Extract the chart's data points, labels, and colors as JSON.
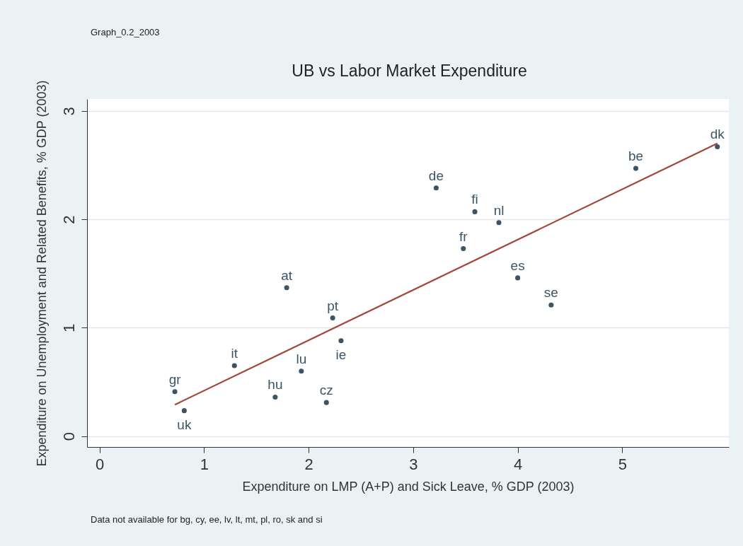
{
  "chart_data": {
    "type": "scatter",
    "title": "UB vs Labor Market Expenditure",
    "subtitle": "Graph_0.2_2003",
    "xlabel": "Expenditure on LMP (A+P) and Sick Leave, % GDP (2003)",
    "ylabel": "Expenditure on Unemployment and Related Benefits, % GDP (2003)",
    "xlim": [
      -0.12,
      6.02
    ],
    "ylim": [
      -0.1,
      3.11
    ],
    "xticks": [
      0,
      1,
      2,
      3,
      4,
      5
    ],
    "yticks": [
      0,
      1,
      2,
      3
    ],
    "grid": "y",
    "series": [
      {
        "marker": "circle",
        "color": "#3b5566",
        "x": [
          0.72,
          0.81,
          1.29,
          1.68,
          1.93,
          1.79,
          2.17,
          2.23,
          2.31,
          3.22,
          3.48,
          3.59,
          3.82,
          4.0,
          4.32,
          5.13,
          5.91
        ],
        "values": [
          0.41,
          0.235,
          0.65,
          0.36,
          0.6,
          1.37,
          0.31,
          1.09,
          0.88,
          2.29,
          1.73,
          2.07,
          1.97,
          1.46,
          1.21,
          2.47,
          2.67
        ]
      },
      {
        "type": "line",
        "color": "#a2463a",
        "x": [
          0.72,
          5.91
        ],
        "values": [
          0.29,
          2.7
        ]
      }
    ],
    "annotations": [
      {
        "text": "gr",
        "x": 0.72,
        "y": 0.41
      },
      {
        "text": "uk",
        "x": 0.81,
        "y": 0.235
      },
      {
        "text": "it",
        "x": 1.29,
        "y": 0.65
      },
      {
        "text": "hu",
        "x": 1.68,
        "y": 0.36
      },
      {
        "text": "lu",
        "x": 1.93,
        "y": 0.6
      },
      {
        "text": "at",
        "x": 1.79,
        "y": 1.37
      },
      {
        "text": "cz",
        "x": 2.17,
        "y": 0.31
      },
      {
        "text": "pt",
        "x": 2.23,
        "y": 1.09
      },
      {
        "text": "ie",
        "x": 2.31,
        "y": 0.88
      },
      {
        "text": "de",
        "x": 3.22,
        "y": 2.29
      },
      {
        "text": "fr",
        "x": 3.48,
        "y": 1.73
      },
      {
        "text": "fi",
        "x": 3.59,
        "y": 2.07
      },
      {
        "text": "nl",
        "x": 3.82,
        "y": 1.97
      },
      {
        "text": "es",
        "x": 4.0,
        "y": 1.46
      },
      {
        "text": "se",
        "x": 4.32,
        "y": 1.21
      },
      {
        "text": "be",
        "x": 5.13,
        "y": 2.47
      },
      {
        "text": "dk",
        "x": 5.91,
        "y": 2.67
      },
      "Data not available for bg, cy, ee, lv, lt, mt, pl, ro, sk and si"
    ]
  }
}
